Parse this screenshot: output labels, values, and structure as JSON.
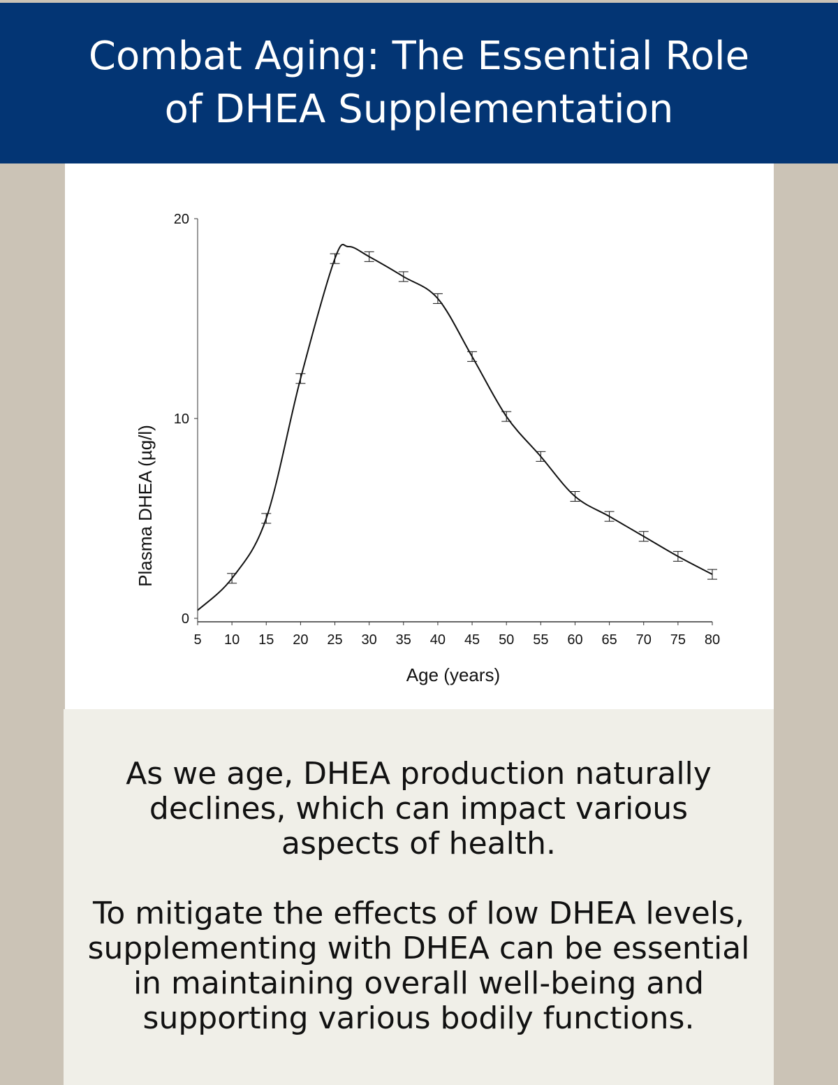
{
  "header": {
    "title": "Combat Aging: The Essential Role of DHEA Supplementation"
  },
  "colors": {
    "header_bg": "#033574",
    "page_bg": "#cbc3b6",
    "text_panel_bg": "#f0efe8",
    "line": "#111111"
  },
  "chart_data": {
    "type": "line",
    "title": "",
    "xlabel": "Age (years)",
    "ylabel": "Plasma DHEA (µg/l)",
    "xlim": [
      5,
      80
    ],
    "ylim": [
      0,
      20
    ],
    "x_ticks": [
      "5",
      "10",
      "15",
      "20",
      "25",
      "30",
      "35",
      "40",
      "45",
      "50",
      "55",
      "60",
      "65",
      "70",
      "75",
      "80"
    ],
    "y_ticks": [
      "0",
      "10",
      "20"
    ],
    "grid": false,
    "error_bars": true,
    "series": [
      {
        "x": [
          5,
          10,
          15,
          20,
          25,
          27,
          30,
          35,
          40,
          45,
          50,
          55,
          60,
          65,
          70,
          75,
          80
        ],
        "y": [
          0.4,
          2.0,
          5.0,
          12.0,
          18.0,
          18.6,
          18.1,
          17.1,
          16.0,
          13.1,
          10.1,
          8.1,
          6.1,
          5.1,
          4.1,
          3.1,
          2.2
        ]
      }
    ]
  },
  "body": {
    "paragraph1": "As we age, DHEA production naturally declines, which can impact various aspects of health.",
    "paragraph2": "To mitigate the effects of low DHEA levels, supplementing with DHEA can be essential in maintaining overall well-being and supporting various bodily functions."
  }
}
